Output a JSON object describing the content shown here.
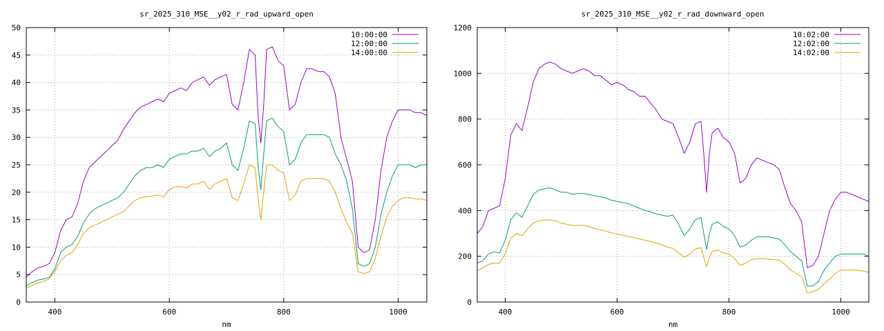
{
  "chart_data": [
    {
      "type": "line",
      "title": "sr_2025_310_MSE__y02_r_rad_upward_open",
      "xlabel": "nm",
      "ylabel": "",
      "xlim": [
        350,
        1050
      ],
      "ylim": [
        0,
        50
      ],
      "xticks": [
        "400",
        "600",
        "800",
        "1000"
      ],
      "yticks": [
        "0",
        "5",
        "10",
        "15",
        "20",
        "25",
        "30",
        "35",
        "40",
        "45",
        "50"
      ],
      "grid": true,
      "legend_position": "top-right",
      "series": [
        {
          "name": "10:00:00",
          "color": "#9400d3",
          "x": [
            350,
            360,
            370,
            380,
            390,
            400,
            410,
            420,
            430,
            440,
            450,
            460,
            470,
            480,
            490,
            500,
            510,
            520,
            530,
            540,
            550,
            560,
            570,
            580,
            590,
            600,
            610,
            620,
            630,
            640,
            650,
            660,
            670,
            680,
            690,
            700,
            710,
            720,
            730,
            740,
            750,
            755,
            760,
            765,
            770,
            780,
            790,
            800,
            810,
            820,
            830,
            840,
            850,
            860,
            870,
            880,
            890,
            900,
            910,
            920,
            930,
            940,
            950,
            960,
            970,
            980,
            990,
            1000,
            1010,
            1020,
            1030,
            1040,
            1050
          ],
          "y": [
            4.5,
            5.5,
            6.2,
            6.5,
            7,
            9,
            13,
            15,
            15.5,
            18,
            22,
            24.5,
            25.5,
            26.5,
            27.5,
            28.5,
            29.5,
            31.5,
            33,
            34.5,
            35.5,
            36,
            36.5,
            37,
            36.5,
            38,
            38.5,
            39,
            38.5,
            40,
            40.5,
            41,
            39.5,
            40.5,
            41,
            41.5,
            36,
            35,
            40,
            46,
            45,
            34,
            29,
            36,
            46,
            46.5,
            44,
            43,
            35,
            36,
            40,
            42.5,
            42.5,
            42,
            42,
            41,
            38,
            30,
            26,
            22,
            10,
            9,
            9.5,
            15,
            24,
            30,
            33,
            35,
            35,
            35,
            34.5,
            34.5,
            34
          ]
        },
        {
          "name": "12:00:00",
          "color": "#009e73",
          "x": [
            350,
            360,
            370,
            380,
            390,
            400,
            410,
            420,
            430,
            440,
            450,
            460,
            470,
            480,
            490,
            500,
            510,
            520,
            530,
            540,
            550,
            560,
            570,
            580,
            590,
            600,
            610,
            620,
            630,
            640,
            650,
            660,
            670,
            680,
            690,
            700,
            710,
            720,
            730,
            740,
            750,
            755,
            760,
            765,
            770,
            780,
            790,
            800,
            810,
            820,
            830,
            840,
            850,
            860,
            870,
            880,
            890,
            900,
            910,
            920,
            930,
            940,
            950,
            960,
            970,
            980,
            990,
            1000,
            1010,
            1020,
            1030,
            1040,
            1050
          ],
          "y": [
            3,
            3.5,
            4,
            4.2,
            4.5,
            6,
            9,
            10,
            10.5,
            12,
            14.5,
            16,
            17,
            17.5,
            18,
            18.5,
            19,
            20,
            21.5,
            23,
            24,
            24.5,
            24.5,
            25,
            24.5,
            26,
            26.5,
            27,
            27,
            27.5,
            27.5,
            28,
            26.5,
            27.5,
            28,
            29,
            25,
            24,
            28,
            33,
            32.5,
            25,
            20.5,
            27,
            33,
            33.5,
            32,
            31,
            25,
            26,
            29,
            30.5,
            30.5,
            30.5,
            30.5,
            30,
            27,
            25,
            22,
            17,
            7,
            6.5,
            7,
            10,
            16,
            20,
            23,
            25,
            25,
            25,
            24.5,
            25,
            25
          ]
        },
        {
          "name": "14:00:00",
          "color": "#e69f00",
          "x": [
            350,
            360,
            370,
            380,
            390,
            400,
            410,
            420,
            430,
            440,
            450,
            460,
            470,
            480,
            490,
            500,
            510,
            520,
            530,
            540,
            550,
            560,
            570,
            580,
            590,
            600,
            610,
            620,
            630,
            640,
            650,
            660,
            670,
            680,
            690,
            700,
            710,
            720,
            730,
            740,
            750,
            755,
            760,
            765,
            770,
            780,
            790,
            800,
            810,
            820,
            830,
            840,
            850,
            860,
            870,
            880,
            890,
            900,
            910,
            920,
            930,
            940,
            950,
            960,
            970,
            980,
            990,
            1000,
            1010,
            1020,
            1030,
            1040,
            1050
          ],
          "y": [
            2.5,
            3,
            3.5,
            3.8,
            4.2,
            5.5,
            7.5,
            8.5,
            9,
            10.5,
            12.5,
            13.5,
            14,
            14.5,
            15,
            15.5,
            16,
            16.5,
            17.5,
            18.5,
            19,
            19.2,
            19.3,
            19.5,
            19.2,
            20.5,
            21,
            21,
            20.8,
            21.5,
            21.5,
            22,
            20.5,
            21.5,
            22,
            22.5,
            19,
            18.5,
            21.5,
            25,
            24.5,
            19,
            15,
            20,
            25,
            25,
            24,
            23.5,
            18.5,
            19.5,
            22,
            22.5,
            22.5,
            22.5,
            22.5,
            22,
            20,
            17,
            14.5,
            12.5,
            5.5,
            5.2,
            5.5,
            8,
            12,
            15.5,
            17.5,
            18.5,
            19,
            19,
            18.8,
            18.8,
            18.5
          ]
        }
      ]
    },
    {
      "type": "line",
      "title": "sr_2025_310_MSE__y02_r_rad_downward_open",
      "xlabel": "nm",
      "ylabel": "",
      "xlim": [
        350,
        1050
      ],
      "ylim": [
        0,
        1200
      ],
      "xticks": [
        "400",
        "600",
        "800",
        "1000"
      ],
      "yticks": [
        "0",
        "200",
        "400",
        "600",
        "800",
        "1000",
        "1200"
      ],
      "grid": true,
      "legend_position": "top-right",
      "series": [
        {
          "name": "10:02:00",
          "color": "#9400d3",
          "x": [
            350,
            360,
            370,
            380,
            390,
            400,
            410,
            420,
            430,
            440,
            450,
            460,
            470,
            480,
            490,
            500,
            510,
            520,
            530,
            540,
            550,
            560,
            570,
            580,
            590,
            600,
            610,
            620,
            630,
            640,
            650,
            660,
            670,
            680,
            690,
            700,
            710,
            720,
            730,
            740,
            750,
            755,
            760,
            765,
            770,
            780,
            790,
            800,
            810,
            820,
            830,
            840,
            850,
            860,
            870,
            880,
            890,
            900,
            910,
            920,
            930,
            940,
            950,
            960,
            970,
            980,
            990,
            1000,
            1010,
            1020,
            1030,
            1040,
            1050
          ],
          "y": [
            300,
            330,
            400,
            410,
            420,
            540,
            730,
            780,
            750,
            850,
            960,
            1020,
            1040,
            1050,
            1040,
            1020,
            1010,
            1000,
            1010,
            1020,
            1010,
            990,
            990,
            970,
            950,
            960,
            950,
            930,
            920,
            900,
            900,
            870,
            840,
            800,
            790,
            780,
            720,
            650,
            700,
            780,
            790,
            650,
            480,
            650,
            740,
            760,
            720,
            700,
            650,
            520,
            540,
            600,
            630,
            620,
            610,
            600,
            580,
            500,
            430,
            400,
            350,
            150,
            160,
            200,
            300,
            400,
            450,
            480,
            480,
            470,
            460,
            450,
            440
          ]
        },
        {
          "name": "12:02:00",
          "color": "#009e73",
          "x": [
            350,
            360,
            370,
            380,
            390,
            400,
            410,
            420,
            430,
            440,
            450,
            460,
            470,
            480,
            490,
            500,
            510,
            520,
            530,
            540,
            550,
            560,
            570,
            580,
            590,
            600,
            610,
            620,
            630,
            640,
            650,
            660,
            670,
            680,
            690,
            700,
            710,
            720,
            730,
            740,
            750,
            755,
            760,
            765,
            770,
            780,
            790,
            800,
            810,
            820,
            830,
            840,
            850,
            860,
            870,
            880,
            890,
            900,
            910,
            920,
            930,
            940,
            950,
            960,
            970,
            980,
            990,
            1000,
            1010,
            1020,
            1030,
            1040,
            1050
          ],
          "y": [
            170,
            180,
            210,
            220,
            215,
            270,
            360,
            390,
            370,
            420,
            470,
            490,
            495,
            500,
            490,
            480,
            480,
            470,
            475,
            475,
            470,
            465,
            460,
            455,
            445,
            440,
            435,
            430,
            420,
            410,
            400,
            395,
            385,
            380,
            375,
            380,
            340,
            290,
            320,
            360,
            370,
            300,
            230,
            300,
            340,
            350,
            330,
            320,
            290,
            240,
            250,
            270,
            285,
            285,
            285,
            280,
            275,
            250,
            220,
            200,
            180,
            70,
            70,
            90,
            140,
            170,
            200,
            210,
            210,
            210,
            210,
            210,
            200
          ]
        },
        {
          "name": "14:02:00",
          "color": "#e69f00",
          "x": [
            350,
            360,
            370,
            380,
            390,
            400,
            410,
            420,
            430,
            440,
            450,
            460,
            470,
            480,
            490,
            500,
            510,
            520,
            530,
            540,
            550,
            560,
            570,
            580,
            590,
            600,
            610,
            620,
            630,
            640,
            650,
            660,
            670,
            680,
            690,
            700,
            710,
            720,
            730,
            740,
            750,
            755,
            760,
            765,
            770,
            780,
            790,
            800,
            810,
            820,
            830,
            840,
            850,
            860,
            870,
            880,
            890,
            900,
            910,
            920,
            930,
            940,
            950,
            960,
            970,
            980,
            990,
            1000,
            1010,
            1020,
            1030,
            1040,
            1050
          ],
          "y": [
            135,
            150,
            165,
            170,
            170,
            210,
            280,
            300,
            290,
            320,
            345,
            355,
            358,
            360,
            355,
            345,
            340,
            335,
            335,
            335,
            330,
            322,
            315,
            310,
            302,
            298,
            292,
            287,
            282,
            276,
            270,
            265,
            258,
            250,
            240,
            235,
            215,
            195,
            210,
            232,
            238,
            195,
            155,
            195,
            220,
            228,
            215,
            210,
            190,
            160,
            170,
            185,
            190,
            190,
            188,
            186,
            182,
            165,
            140,
            125,
            110,
            40,
            45,
            55,
            80,
            100,
            125,
            140,
            140,
            140,
            140,
            135,
            130
          ]
        }
      ]
    }
  ]
}
